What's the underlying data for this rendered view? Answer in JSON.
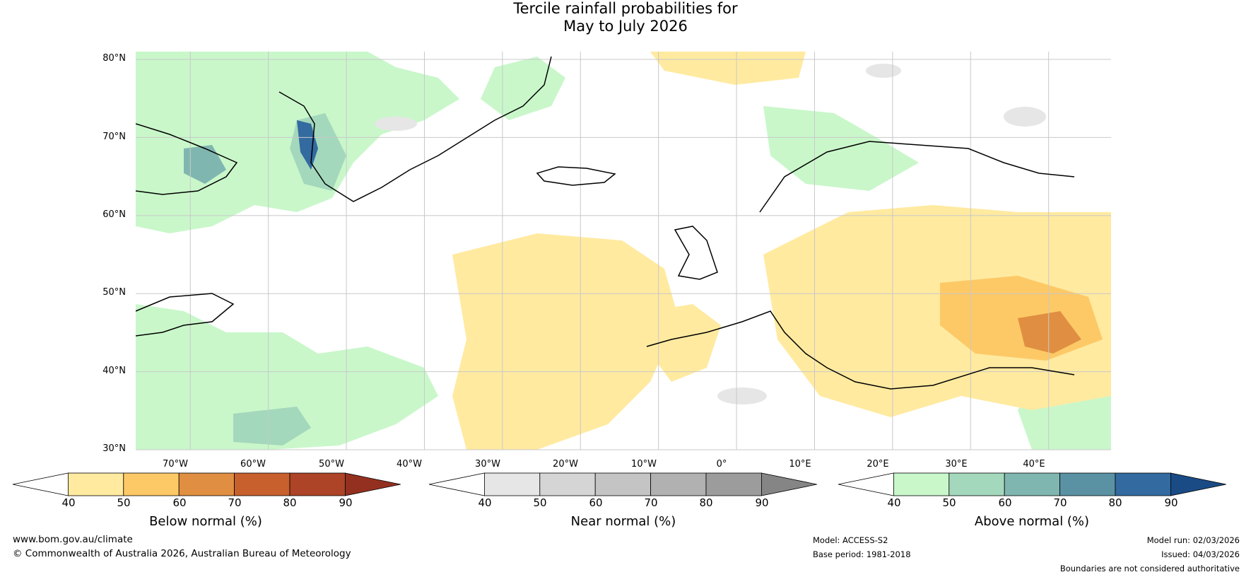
{
  "title": {
    "line1": "Tercile rainfall probabilities for",
    "line2": "May to July 2026"
  },
  "map": {
    "lat_ticks": [
      "80°N",
      "70°N",
      "60°N",
      "50°N",
      "40°N",
      "30°N"
    ],
    "lon_ticks": [
      "70°W",
      "60°W",
      "50°W",
      "40°W",
      "30°W",
      "20°W",
      "10°W",
      "0°",
      "10°E",
      "20°E",
      "30°E",
      "40°E"
    ],
    "extent": {
      "lon": [
        -77,
        48
      ],
      "lat": [
        30,
        81
      ]
    },
    "colors": {
      "land_border": "#000000",
      "country_border": "#888888",
      "grid": "#c8c8c8"
    }
  },
  "colorbars": [
    {
      "id": "below",
      "title": "Below normal (%)",
      "ticks": [
        "40",
        "50",
        "60",
        "70",
        "80",
        "90"
      ],
      "colors": [
        "#ffffff",
        "#ffeaa0",
        "#fdc966",
        "#e08f42",
        "#c8602e",
        "#ad4427",
        "#94301f"
      ]
    },
    {
      "id": "near",
      "title": "Near normal (%)",
      "ticks": [
        "40",
        "50",
        "60",
        "70",
        "80",
        "90"
      ],
      "colors": [
        "#ffffff",
        "#e6e6e6",
        "#d5d5d5",
        "#c4c4c4",
        "#b1b1b1",
        "#9c9c9c",
        "#858585"
      ]
    },
    {
      "id": "above",
      "title": "Above normal (%)",
      "ticks": [
        "40",
        "50",
        "60",
        "70",
        "80",
        "90"
      ],
      "colors": [
        "#ffffff",
        "#c9f7ca",
        "#a4d8bc",
        "#80b6b0",
        "#5a92a3",
        "#336aa0",
        "#1a4b85"
      ]
    }
  ],
  "footer": {
    "url": "www.bom.gov.au/climate",
    "copyright": "© Commonwealth of Australia 2026, Australian Bureau of Meteorology",
    "model": "Model: ACCESS-S2",
    "base_period": "Base period: 1981-2018",
    "model_run": "Model run: 02/03/2026",
    "issued": "Issued: 04/03/2026",
    "disclaimer": "Boundaries are not considered authoritative"
  }
}
